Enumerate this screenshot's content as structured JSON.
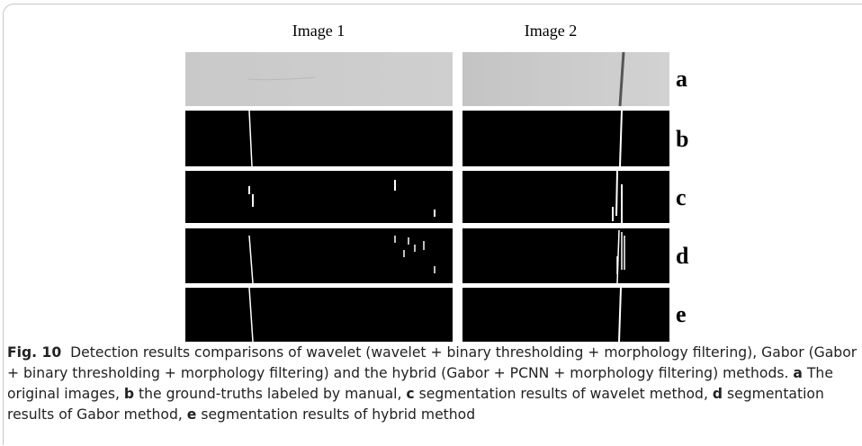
{
  "figure": {
    "columns": [
      "Image 1",
      "Image 2"
    ],
    "rows": [
      "a",
      "b",
      "c",
      "d",
      "e"
    ]
  },
  "caption": {
    "label": "Fig. 10",
    "text": "Detection results comparisons of wavelet (wavelet + binary thresholding + morphology filtering), Gabor (Gabor + binary thresholding + morphology filtering) and the hybrid (Gabor + PCNN + morphology filtering) methods.",
    "items": [
      {
        "key": "a",
        "text": "The original images,"
      },
      {
        "key": "b",
        "text": "the ground-truths labeled by manual,"
      },
      {
        "key": "c",
        "text": "segmentation results of wavelet method,"
      },
      {
        "key": "d",
        "text": "segmentation results of Gabor method,"
      },
      {
        "key": "e",
        "text": "segmentation results of hybrid method"
      }
    ]
  }
}
